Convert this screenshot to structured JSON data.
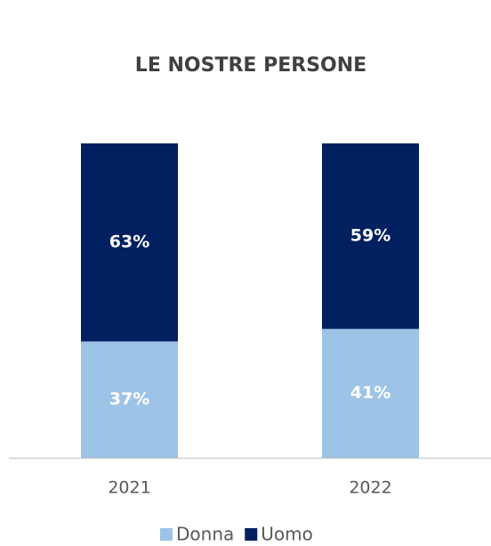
{
  "chart_data": {
    "type": "stacked_bar",
    "title": "LE NOSTRE PERSONE",
    "categories": [
      "2021",
      "2022"
    ],
    "series": [
      {
        "name": "Donna",
        "color": "#9dc3e6",
        "values": [
          37,
          41
        ]
      },
      {
        "name": "Uomo",
        "color": "#002060",
        "values": [
          63,
          59
        ]
      }
    ],
    "value_labels": [
      [
        "37%",
        "41%"
      ],
      [
        "63%",
        "59%"
      ]
    ],
    "ylim": [
      0,
      100
    ]
  }
}
